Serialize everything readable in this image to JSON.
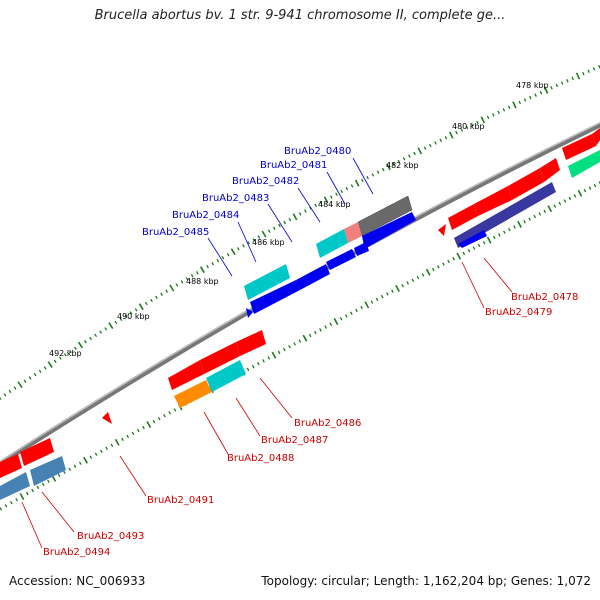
{
  "title": "Brucella abortus bv. 1 str. 9-941 chromosome II, complete ge...",
  "footer": {
    "accession": "Accession: NC_006933",
    "summary": "Topology: circular; Length: 1,162,204 bp; Genes: 1,072"
  },
  "colors": {
    "backbone": "#808080",
    "tick": "#1a7a1a",
    "label_blue": "#0000cc",
    "label_red": "#cc0000",
    "gene_red": "#ff0000",
    "gene_blue": "#0000ff",
    "gene_cyan": "#00c8c8",
    "gene_gray": "#707070",
    "gene_pink": "#f08080",
    "gene_navy": "#3838a0",
    "gene_steel": "#4682b4",
    "gene_orange": "#ff8c00",
    "gene_green": "#00e080"
  },
  "kbp_labels": [
    "478 kbp",
    "480 kbp",
    "482 kbp",
    "484 kbp",
    "486 kbp",
    "488 kbp",
    "490 kbp",
    "492 kbp"
  ],
  "gene_labels": {
    "top": [
      "BruAb2_0480",
      "BruAb2_0481",
      "BruAb2_0482",
      "BruAb2_0483",
      "BruAb2_0484",
      "BruAb2_0485"
    ],
    "bottom": [
      "BruAb2_0478",
      "BruAb2_0479",
      "BruAb2_0486",
      "BruAb2_0487",
      "BruAb2_0488",
      "BruAb2_0491",
      "BruAb2_0493",
      "BruAb2_0494"
    ]
  }
}
